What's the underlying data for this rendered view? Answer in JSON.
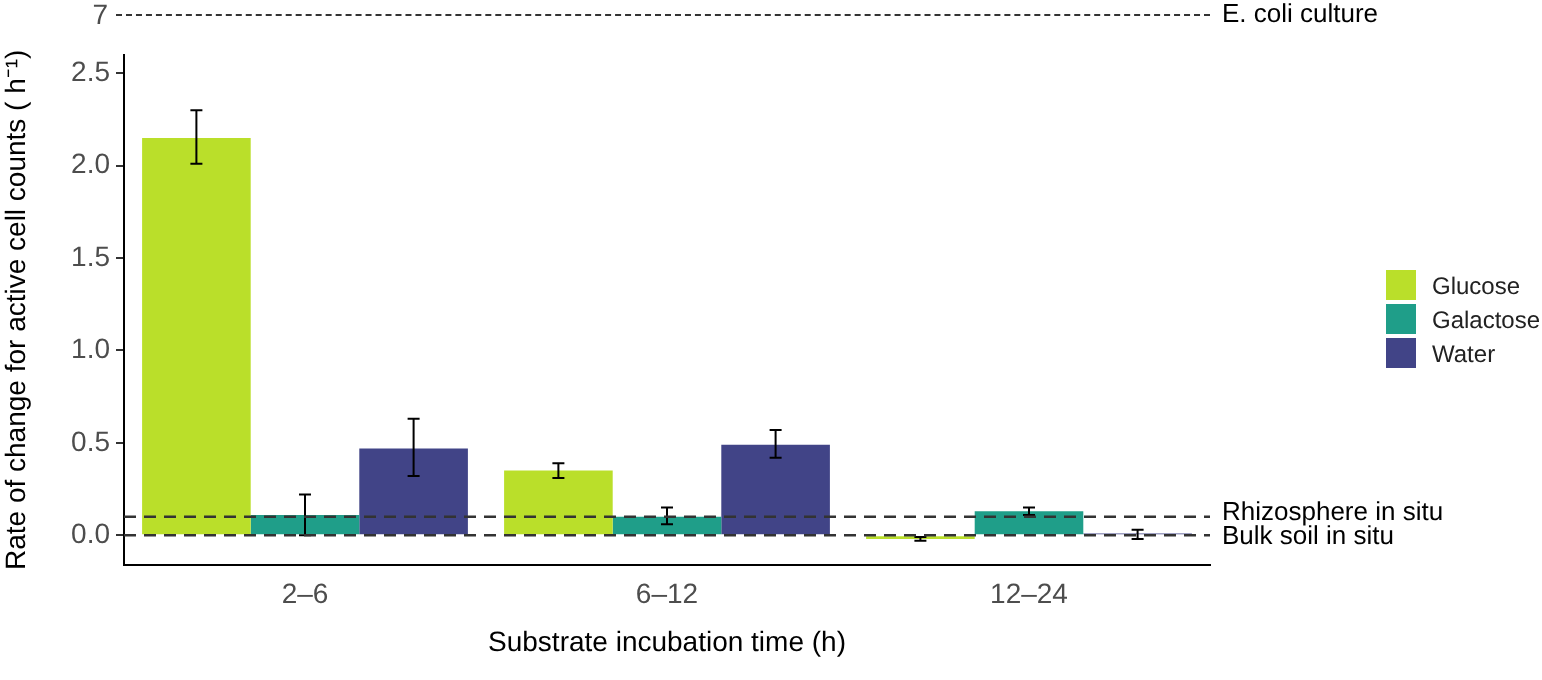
{
  "chart_data": [
    {
      "type": "other",
      "annotations": [
        "7",
        "E. coli culture"
      ]
    },
    {
      "type": "bar",
      "xlabel": "Substrate incubation time (h)",
      "ylabel": "Rate of change for active cell counts ( h⁻¹)",
      "categories": [
        "2–6",
        "6–12",
        "12–24"
      ],
      "series": [
        {
          "name": "Glucose",
          "color": "#badf2a",
          "values": [
            2.15,
            0.35,
            -0.02
          ],
          "errors": [
            [
              2.01,
              2.3
            ],
            [
              0.31,
              0.39
            ],
            [
              -0.03,
              -0.01
            ]
          ]
        },
        {
          "name": "Galactose",
          "color": "#1f9e89",
          "values": [
            0.11,
            0.1,
            0.13
          ],
          "errors": [
            [
              0.0,
              0.22
            ],
            [
              0.06,
              0.15
            ],
            [
              0.11,
              0.15
            ]
          ]
        },
        {
          "name": "Water",
          "color": "#414487",
          "values": [
            0.47,
            0.49,
            0.01
          ],
          "errors": [
            [
              0.32,
              0.63
            ],
            [
              0.42,
              0.57
            ],
            [
              -0.02,
              0.03
            ]
          ]
        }
      ],
      "ylim": [
        -0.16,
        2.6
      ],
      "yticks": [
        {
          "value": 0,
          "label": "0.0"
        },
        {
          "value": 0.5,
          "label": "0.5"
        },
        {
          "value": 1,
          "label": "1.0"
        },
        {
          "value": 1.5,
          "label": "1.5"
        },
        {
          "value": 2,
          "label": "2.0"
        },
        {
          "value": 2.5,
          "label": "2.5"
        }
      ],
      "grid": false,
      "legend": "right",
      "ref_lines": [
        {
          "axis": "y",
          "value": 0.1,
          "label": "Rhizosphere in situ",
          "line_style": "dashed",
          "color": "#333333"
        },
        {
          "axis": "y",
          "value": 0,
          "label": "Bulk soil in situ",
          "line_style": "dashed",
          "color": "#333333"
        }
      ]
    }
  ]
}
